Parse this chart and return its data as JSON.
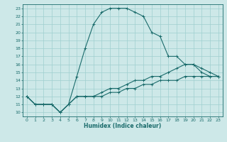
{
  "title": "",
  "xlabel": "Humidex (Indice chaleur)",
  "ylabel": "",
  "xlim": [
    -0.5,
    23.5
  ],
  "ylim": [
    9.5,
    23.5
  ],
  "yticks": [
    10,
    11,
    12,
    13,
    14,
    15,
    16,
    17,
    18,
    19,
    20,
    21,
    22,
    23
  ],
  "xticks": [
    0,
    1,
    2,
    3,
    4,
    5,
    6,
    7,
    8,
    9,
    10,
    11,
    12,
    13,
    14,
    15,
    16,
    17,
    18,
    19,
    20,
    21,
    22,
    23
  ],
  "bg_color": "#cde8e8",
  "grid_color": "#9fcfcf",
  "line_color": "#1a6b6b",
  "line_width": 0.8,
  "marker": "+",
  "marker_size": 3,
  "series": [
    {
      "x": [
        0,
        1,
        2,
        3,
        4,
        5,
        6,
        7,
        8,
        9,
        10,
        11,
        12,
        13,
        14,
        15,
        16,
        17,
        18,
        19,
        20,
        21,
        22,
        23
      ],
      "y": [
        12,
        11,
        11,
        11,
        10,
        11,
        14.5,
        18,
        21,
        22.5,
        23,
        23,
        23,
        22.5,
        22,
        20,
        19.5,
        17,
        17,
        16,
        16,
        15,
        14.5,
        14.5
      ]
    },
    {
      "x": [
        0,
        1,
        2,
        3,
        4,
        5,
        6,
        7,
        8,
        9,
        10,
        11,
        12,
        13,
        14,
        15,
        16,
        17,
        18,
        19,
        20,
        21,
        22,
        23
      ],
      "y": [
        12,
        11,
        11,
        11,
        10,
        11,
        12,
        12,
        12,
        12.5,
        13,
        13,
        13.5,
        14,
        14,
        14.5,
        14.5,
        15,
        15.5,
        16,
        16,
        15.5,
        15,
        14.5
      ]
    },
    {
      "x": [
        0,
        1,
        2,
        3,
        4,
        5,
        6,
        7,
        8,
        9,
        10,
        11,
        12,
        13,
        14,
        15,
        16,
        17,
        18,
        19,
        20,
        21,
        22,
        23
      ],
      "y": [
        12,
        11,
        11,
        11,
        10,
        11,
        12,
        12,
        12,
        12,
        12.5,
        12.5,
        13,
        13,
        13.5,
        13.5,
        14,
        14,
        14,
        14.5,
        14.5,
        14.5,
        14.5,
        14.5
      ]
    }
  ]
}
